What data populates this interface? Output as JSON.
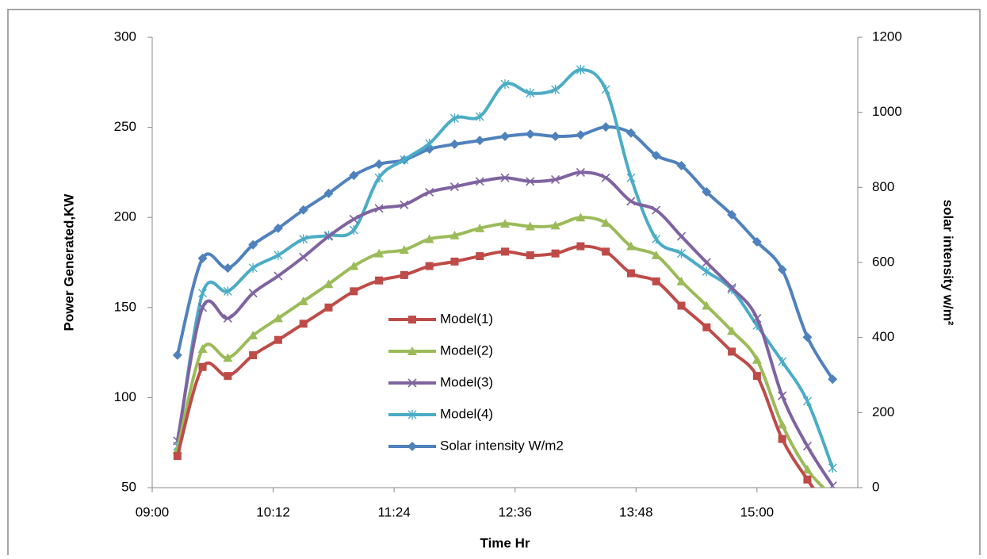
{
  "chart_data": {
    "type": "line",
    "x_label": "Time Hr",
    "y_label": "Power Generated,KW",
    "y2_label": "solar  intensity w/m²",
    "x": [
      555,
      570,
      585,
      600,
      615,
      630,
      645,
      660,
      675,
      690,
      705,
      720,
      735,
      750,
      765,
      780,
      795,
      810,
      825,
      840,
      855,
      870,
      885,
      900,
      915,
      930,
      945
    ],
    "xlim": [
      540,
      960
    ],
    "xticks": [
      {
        "value": 540,
        "label": "09:00"
      },
      {
        "value": 612,
        "label": "10:12"
      },
      {
        "value": 684,
        "label": "11:24"
      },
      {
        "value": 756,
        "label": "12:36"
      },
      {
        "value": 828,
        "label": "13:48"
      },
      {
        "value": 900,
        "label": "15:00"
      }
    ],
    "ylim": [
      50,
      300
    ],
    "yticks": [
      50,
      100,
      150,
      200,
      250,
      300
    ],
    "y2lim": [
      0,
      1200
    ],
    "y2ticks": [
      0,
      200,
      400,
      600,
      800,
      1000,
      1200
    ],
    "series": [
      {
        "name": "Model(1)",
        "color": "#be4b48",
        "marker": "square",
        "values": [
          67.6,
          117,
          112,
          123.5,
          132,
          141,
          150,
          159,
          165,
          168,
          173,
          175.5,
          178.5,
          181,
          179,
          180,
          184,
          181,
          169,
          164.5,
          151,
          139,
          125.5,
          112,
          77,
          54.5,
          35
        ]
      },
      {
        "name": "Model(2)",
        "color": "#9bbb59",
        "marker": "triangle",
        "values": [
          71,
          127,
          122,
          134.5,
          144,
          153.5,
          163,
          173,
          180,
          182,
          188,
          190,
          194,
          196.5,
          195,
          195.5,
          200,
          197,
          184,
          179,
          164.5,
          151,
          137,
          121,
          85,
          60,
          45
        ]
      },
      {
        "name": "Model(3)",
        "color": "#7f63a0",
        "marker": "x",
        "values": [
          76,
          150,
          144,
          158,
          167.5,
          178,
          189.5,
          199,
          205,
          207,
          214,
          217,
          220,
          222,
          220,
          221,
          225,
          222,
          209,
          204,
          189.5,
          175,
          161,
          144,
          101,
          73,
          51
        ]
      },
      {
        "name": "Model(4)",
        "color": "#4bacc6",
        "marker": "star",
        "values": [
          73,
          158,
          159,
          172,
          179,
          188,
          190,
          193,
          222,
          232,
          241,
          255,
          256,
          274,
          269,
          271,
          282,
          271,
          222,
          188,
          180,
          170,
          160,
          140,
          120,
          98,
          61
        ]
      },
      {
        "name": "Solar intensity W/m2",
        "color": "#4f81bd",
        "marker": "diamond",
        "axis": "y2",
        "values": [
          353,
          611,
          585,
          647,
          691,
          740,
          784,
          832,
          862,
          873,
          902,
          915,
          925,
          936,
          942,
          936,
          940,
          961,
          945,
          885,
          858,
          788,
          727,
          655,
          581,
          401,
          289
        ]
      }
    ]
  }
}
